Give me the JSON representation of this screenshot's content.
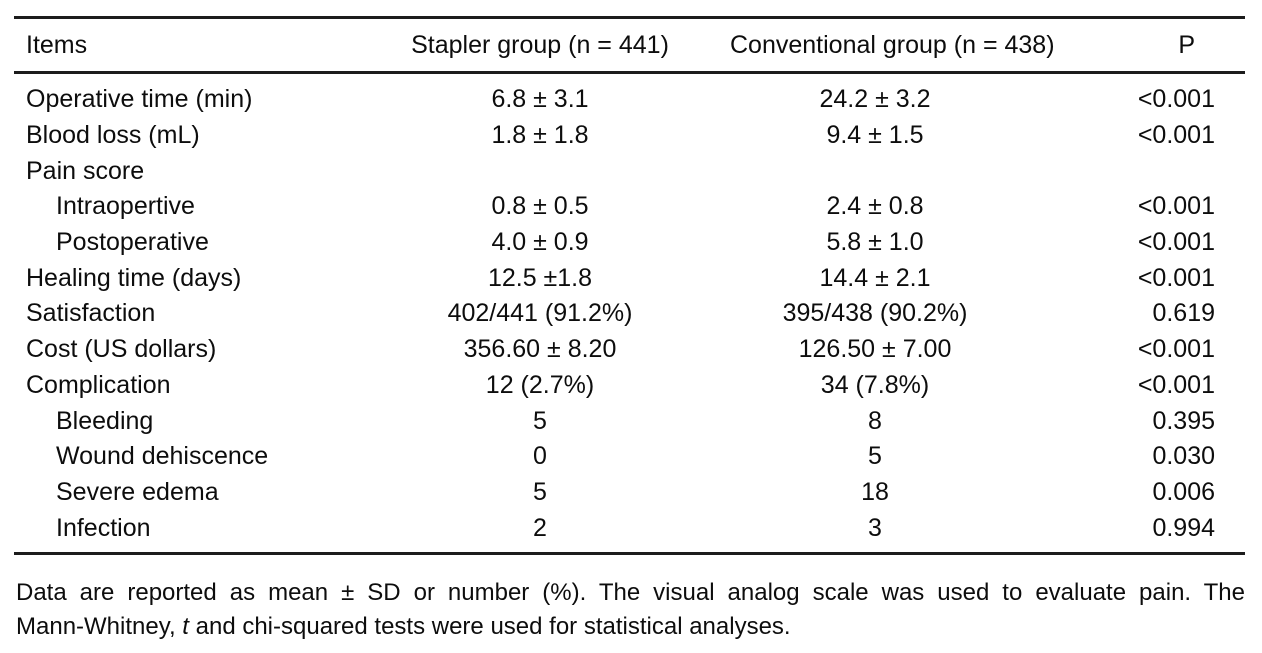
{
  "table": {
    "header": {
      "items": "Items",
      "stapler": "Stapler group (n = 441)",
      "conventional": "Conventional group (n = 438)",
      "p": "P"
    },
    "rows": [
      {
        "item": "Operative time (min)",
        "indent": false,
        "stapler": "6.8 ± 3.1",
        "conventional": "24.2 ± 3.2",
        "p": "<0.001"
      },
      {
        "item": "Blood loss (mL)",
        "indent": false,
        "stapler": "1.8 ± 1.8",
        "conventional": "9.4 ± 1.5",
        "p": "<0.001"
      },
      {
        "item": "Pain score",
        "indent": false,
        "stapler": "",
        "conventional": "",
        "p": ""
      },
      {
        "item": "Intraopertive",
        "indent": true,
        "stapler": "0.8 ± 0.5",
        "conventional": "2.4 ± 0.8",
        "p": "<0.001"
      },
      {
        "item": "Postoperative",
        "indent": true,
        "stapler": "4.0 ± 0.9",
        "conventional": "5.8 ± 1.0",
        "p": "<0.001"
      },
      {
        "item": "Healing time (days)",
        "indent": false,
        "stapler": "12.5 ±1.8",
        "conventional": "14.4 ± 2.1",
        "p": "<0.001"
      },
      {
        "item": "Satisfaction",
        "indent": false,
        "stapler": "402/441 (91.2%)",
        "conventional": "395/438 (90.2%)",
        "p": "0.619"
      },
      {
        "item": "Cost (US dollars)",
        "indent": false,
        "stapler": "356.60 ± 8.20",
        "conventional": "126.50 ± 7.00",
        "p": "<0.001"
      },
      {
        "item": "Complication",
        "indent": false,
        "stapler": "12 (2.7%)",
        "conventional": "34 (7.8%)",
        "p": "<0.001"
      },
      {
        "item": "Bleeding",
        "indent": true,
        "stapler": "5",
        "conventional": "8",
        "p": "0.395"
      },
      {
        "item": "Wound dehiscence",
        "indent": true,
        "stapler": "0",
        "conventional": "5",
        "p": "0.030"
      },
      {
        "item": "Severe edema",
        "indent": true,
        "stapler": "5",
        "conventional": "18",
        "p": "0.006"
      },
      {
        "item": "Infection",
        "indent": true,
        "stapler": "2",
        "conventional": "3",
        "p": "0.994"
      }
    ]
  },
  "footnote": {
    "line1": "Data are reported as mean ± SD or number (%). The visual analog scale was used to evaluate pain. The",
    "line2_pre": "Mann-Whitney, ",
    "line2_italic": "t",
    "line2_post": " and chi-squared tests were used for statistical analyses."
  },
  "colors": {
    "text": "#0d0d0d",
    "rule": "#1c1c1c",
    "background": "#ffffff"
  },
  "chart_data": {
    "type": "table",
    "title": "",
    "columns": [
      "Items",
      "Stapler group (n = 441)",
      "Conventional group (n = 438)",
      "P"
    ],
    "rows": [
      [
        "Operative time (min)",
        "6.8 ± 3.1",
        "24.2 ± 3.2",
        "<0.001"
      ],
      [
        "Blood loss (mL)",
        "1.8 ± 1.8",
        "9.4 ± 1.5",
        "<0.001"
      ],
      [
        "Pain score",
        "",
        "",
        ""
      ],
      [
        "Intraopertive",
        "0.8 ± 0.5",
        "2.4 ± 0.8",
        "<0.001"
      ],
      [
        "Postoperative",
        "4.0 ± 0.9",
        "5.8 ± 1.0",
        "<0.001"
      ],
      [
        "Healing time (days)",
        "12.5 ±1.8",
        "14.4 ± 2.1",
        "<0.001"
      ],
      [
        "Satisfaction",
        "402/441 (91.2%)",
        "395/438 (90.2%)",
        "0.619"
      ],
      [
        "Cost (US dollars)",
        "356.60 ± 8.20",
        "126.50 ± 7.00",
        "<0.001"
      ],
      [
        "Complication",
        "12 (2.7%)",
        "34 (7.8%)",
        "<0.001"
      ],
      [
        "Bleeding",
        "5",
        "8",
        "0.395"
      ],
      [
        "Wound dehiscence",
        "0",
        "5",
        "0.030"
      ],
      [
        "Severe edema",
        "5",
        "18",
        "0.006"
      ],
      [
        "Infection",
        "2",
        "3",
        "0.994"
      ]
    ]
  }
}
